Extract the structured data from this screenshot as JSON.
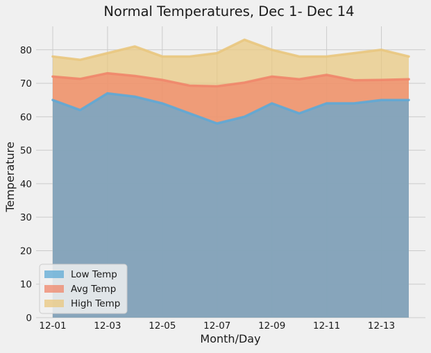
{
  "chart_data": {
    "type": "area",
    "title": "Normal Temperatures, Dec 1- Dec 14",
    "xlabel": "Month/Day",
    "ylabel": "Temperature",
    "categories": [
      "12-01",
      "12-02",
      "12-03",
      "12-04",
      "12-05",
      "12-06",
      "12-07",
      "12-08",
      "12-09",
      "12-10",
      "12-11",
      "12-12",
      "12-13",
      "12-14"
    ],
    "x_tick_labels": [
      "12-01",
      "12-03",
      "12-05",
      "12-07",
      "12-09",
      "12-11",
      "12-13"
    ],
    "ylim": [
      0,
      87
    ],
    "y_ticks": [
      0,
      10,
      20,
      30,
      40,
      50,
      60,
      70,
      80
    ],
    "grid": true,
    "legend_position": "lower-left",
    "stacked": false,
    "series": [
      {
        "name": "Low Temp",
        "color": "#5ea9d6",
        "values": [
          65,
          62,
          67,
          66,
          64,
          61,
          58,
          60,
          64,
          61,
          64,
          64,
          65,
          65
        ]
      },
      {
        "name": "Avg Temp",
        "color": "#f0866a",
        "values": [
          72,
          71.3,
          73,
          72.2,
          71,
          69.3,
          69.1,
          70.2,
          72,
          71.2,
          72.5,
          70.9,
          71,
          71.2
        ]
      },
      {
        "name": "High Temp",
        "color": "#e9c77e",
        "values": [
          78,
          77,
          79,
          81,
          78,
          78,
          79,
          83,
          80,
          78,
          78,
          79,
          80,
          78
        ]
      }
    ]
  }
}
